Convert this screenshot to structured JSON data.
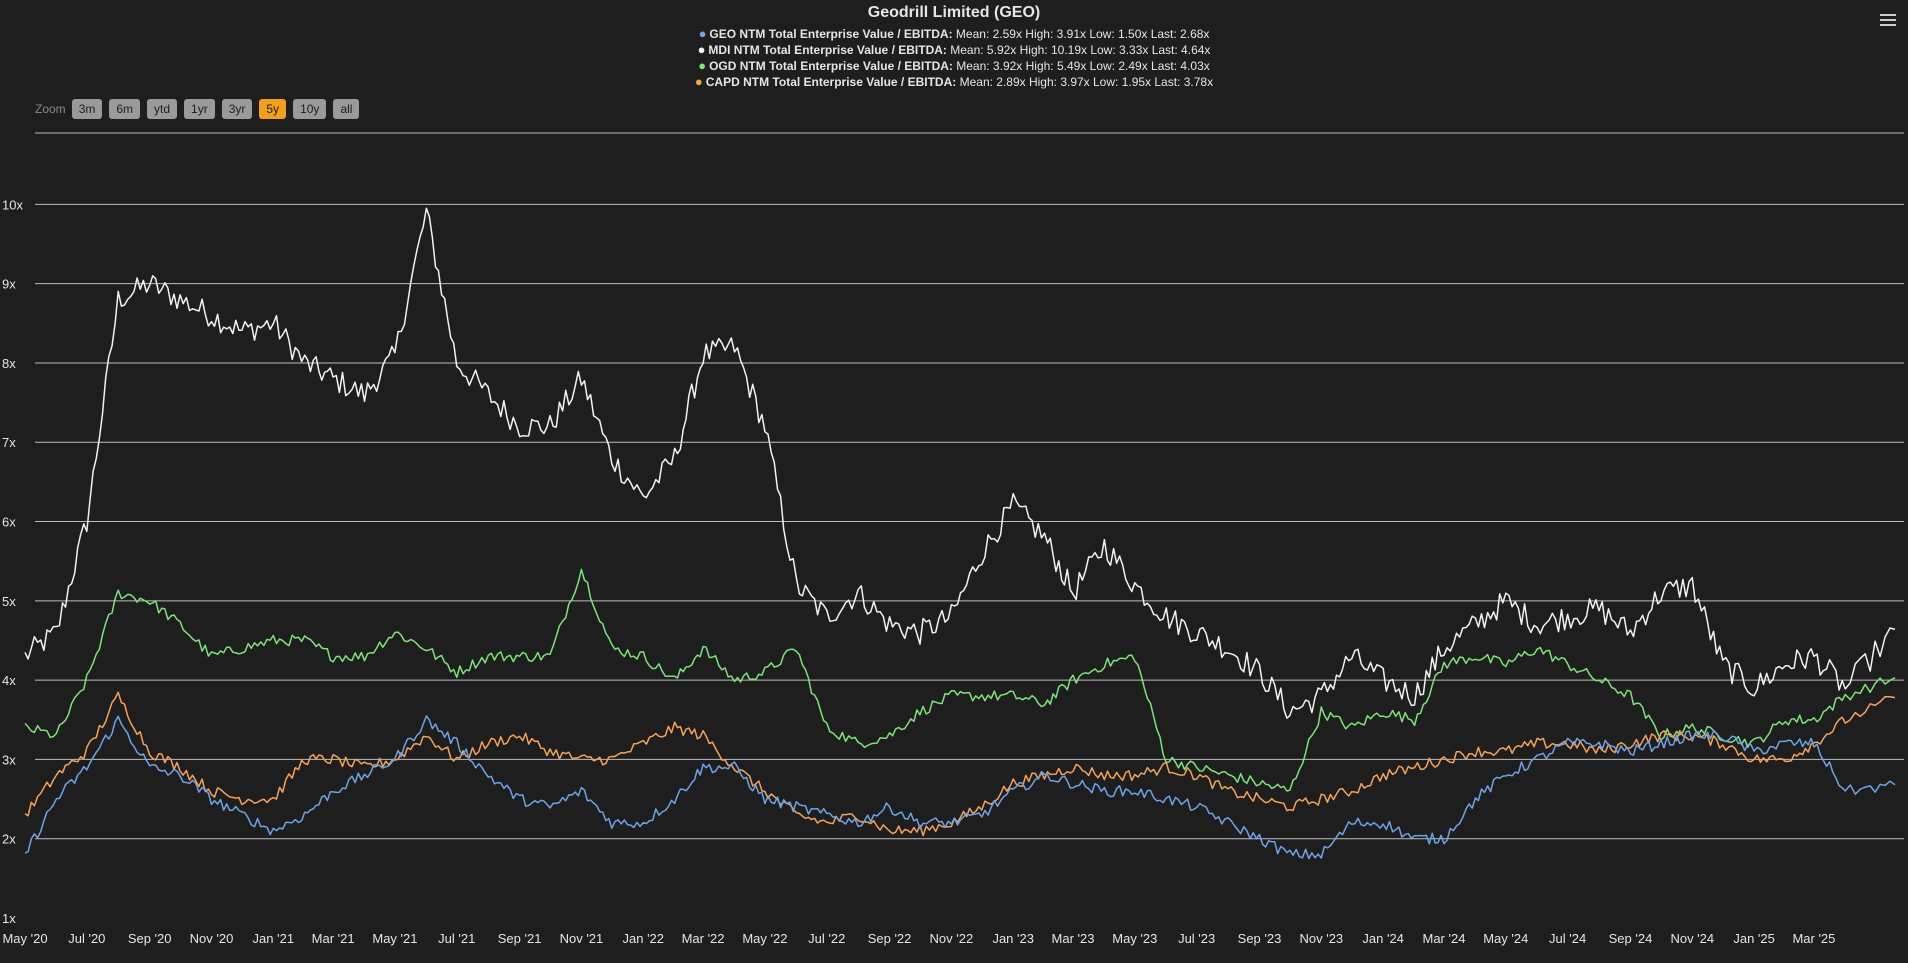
{
  "title": "Geodrill Limited (GEO)",
  "legend": [
    {
      "name": "GEO NTM Total Enterprise Value / EBITDA:",
      "stats": "Mean: 2.59x High: 3.91x Low: 1.50x Last: 2.68x",
      "color": "#6fa3e8"
    },
    {
      "name": "MDI NTM Total Enterprise Value / EBITDA:",
      "stats": "Mean: 5.92x High: 10.19x Low: 3.33x Last: 4.64x",
      "color": "#f2f2f2"
    },
    {
      "name": "OGD NTM Total Enterprise Value / EBITDA:",
      "stats": "Mean: 3.92x High: 5.49x Low: 2.49x Last: 4.03x",
      "color": "#7fe27a"
    },
    {
      "name": "CAPD NTM Total Enterprise Value / EBITDA:",
      "stats": "Mean: 2.89x High: 3.97x Low: 1.95x Last: 3.78x",
      "color": "#f5a25a"
    }
  ],
  "zoom": {
    "label": "Zoom",
    "buttons": [
      "3m",
      "6m",
      "ytd",
      "1yr",
      "3yr",
      "5y",
      "10y",
      "all"
    ],
    "active": "5y"
  },
  "icons": {
    "menu": "hamburger-menu-icon"
  },
  "chart_data": {
    "type": "line",
    "title": "Geodrill Limited (GEO)",
    "y_ticks": [
      "1x",
      "2x",
      "3x",
      "4x",
      "5x",
      "6x",
      "7x",
      "8x",
      "9x",
      "10x"
    ],
    "ylim": [
      1,
      10.9
    ],
    "x_ticks": [
      "May '20",
      "Jul '20",
      "Sep '20",
      "Nov '20",
      "Jan '21",
      "Mar '21",
      "May '21",
      "Jul '21",
      "Sep '21",
      "Nov '21",
      "Jan '22",
      "Mar '22",
      "May '22",
      "Jul '22",
      "Sep '22",
      "Nov '22",
      "Jan '23",
      "Mar '23",
      "May '23",
      "Jul '23",
      "Sep '23",
      "Nov '23",
      "Jan '24",
      "Mar '24",
      "May '24",
      "Jul '24",
      "Sep '24",
      "Nov '24",
      "Jan '25",
      "Mar '25"
    ],
    "xlim": [
      "2020-05-01",
      "2025-05-20"
    ],
    "grid": true,
    "legend_position": "top-center",
    "x": [
      "2020-05-01",
      "2020-06-01",
      "2020-07-01",
      "2020-08-01",
      "2020-09-01",
      "2020-10-01",
      "2020-11-01",
      "2020-12-01",
      "2021-01-01",
      "2021-02-01",
      "2021-03-01",
      "2021-04-01",
      "2021-05-01",
      "2021-06-01",
      "2021-07-01",
      "2021-08-01",
      "2021-09-01",
      "2021-10-01",
      "2021-11-01",
      "2021-12-01",
      "2022-01-01",
      "2022-02-01",
      "2022-03-01",
      "2022-04-01",
      "2022-05-01",
      "2022-06-01",
      "2022-07-01",
      "2022-08-01",
      "2022-09-01",
      "2022-10-01",
      "2022-11-01",
      "2022-12-01",
      "2023-01-01",
      "2023-02-01",
      "2023-03-01",
      "2023-04-01",
      "2023-05-01",
      "2023-06-01",
      "2023-07-01",
      "2023-08-01",
      "2023-09-01",
      "2023-10-01",
      "2023-11-01",
      "2023-12-01",
      "2024-01-01",
      "2024-02-01",
      "2024-03-01",
      "2024-04-01",
      "2024-05-01",
      "2024-06-01",
      "2024-07-01",
      "2024-08-01",
      "2024-09-01",
      "2024-10-01",
      "2024-11-01",
      "2024-12-01",
      "2025-01-01",
      "2025-02-01",
      "2025-03-01",
      "2025-04-01",
      "2025-05-20"
    ],
    "series": [
      {
        "name": "GEO NTM Total Enterprise Value / EBITDA",
        "color": "#6fa3e8",
        "values": [
          1.8,
          2.5,
          2.9,
          3.5,
          2.9,
          2.8,
          2.5,
          2.3,
          2.1,
          2.3,
          2.6,
          2.8,
          3.0,
          3.5,
          3.2,
          2.8,
          2.5,
          2.4,
          2.6,
          2.2,
          2.2,
          2.5,
          2.9,
          2.9,
          2.5,
          2.4,
          2.3,
          2.2,
          2.4,
          2.2,
          2.2,
          2.3,
          2.6,
          2.8,
          2.7,
          2.6,
          2.6,
          2.5,
          2.4,
          2.2,
          2.0,
          1.8,
          1.8,
          2.2,
          2.2,
          2.0,
          2.0,
          2.5,
          2.8,
          3.0,
          3.2,
          3.2,
          3.1,
          3.2,
          3.3,
          3.3,
          3.1,
          3.2,
          3.2,
          2.6,
          2.68
        ]
      },
      {
        "name": "MDI NTM Total Enterprise Value / EBITDA",
        "color": "#f2f2f2",
        "values": [
          4.3,
          4.6,
          6.0,
          8.8,
          9.0,
          8.8,
          8.6,
          8.4,
          8.5,
          8.0,
          7.8,
          7.6,
          8.1,
          9.9,
          8.0,
          7.6,
          7.2,
          7.2,
          7.8,
          6.8,
          6.3,
          6.8,
          8.1,
          8.2,
          7.2,
          5.2,
          4.8,
          5.1,
          4.7,
          4.6,
          4.8,
          5.6,
          6.2,
          5.8,
          5.1,
          5.7,
          5.2,
          4.8,
          4.6,
          4.4,
          4.1,
          3.6,
          3.8,
          4.3,
          4.0,
          3.8,
          4.4,
          4.7,
          5.0,
          4.7,
          4.8,
          4.9,
          4.6,
          5.1,
          5.2,
          4.2,
          3.9,
          4.2,
          4.3,
          3.9,
          4.64
        ]
      },
      {
        "name": "OGD NTM Total Enterprise Value / EBITDA",
        "color": "#7fe27a",
        "values": [
          3.4,
          3.3,
          4.0,
          5.1,
          5.0,
          4.7,
          4.3,
          4.4,
          4.5,
          4.5,
          4.3,
          4.3,
          4.6,
          4.4,
          4.1,
          4.3,
          4.3,
          4.3,
          5.4,
          4.4,
          4.3,
          4.0,
          4.4,
          4.0,
          4.1,
          4.4,
          3.4,
          3.2,
          3.3,
          3.6,
          3.8,
          3.8,
          3.8,
          3.7,
          4.0,
          4.2,
          4.3,
          3.0,
          2.9,
          2.8,
          2.7,
          2.6,
          3.6,
          3.4,
          3.6,
          3.5,
          4.2,
          4.3,
          4.2,
          4.4,
          4.2,
          4.0,
          3.8,
          3.3,
          3.4,
          3.3,
          3.2,
          3.5,
          3.5,
          3.8,
          4.03
        ]
      },
      {
        "name": "CAPD NTM Total Enterprise Value / EBITDA",
        "color": "#f5a25a",
        "values": [
          2.3,
          2.8,
          3.1,
          3.8,
          3.1,
          2.9,
          2.6,
          2.5,
          2.5,
          3.0,
          3.0,
          2.9,
          3.0,
          3.3,
          3.0,
          3.2,
          3.3,
          3.1,
          3.0,
          3.0,
          3.2,
          3.4,
          3.3,
          2.9,
          2.6,
          2.3,
          2.2,
          2.3,
          2.1,
          2.1,
          2.2,
          2.4,
          2.7,
          2.8,
          2.9,
          2.8,
          2.8,
          2.9,
          2.8,
          2.6,
          2.5,
          2.4,
          2.5,
          2.6,
          2.8,
          2.9,
          3.0,
          3.1,
          3.1,
          3.2,
          3.2,
          3.1,
          3.2,
          3.3,
          3.3,
          3.2,
          3.0,
          3.0,
          3.2,
          3.5,
          3.78
        ]
      }
    ]
  }
}
